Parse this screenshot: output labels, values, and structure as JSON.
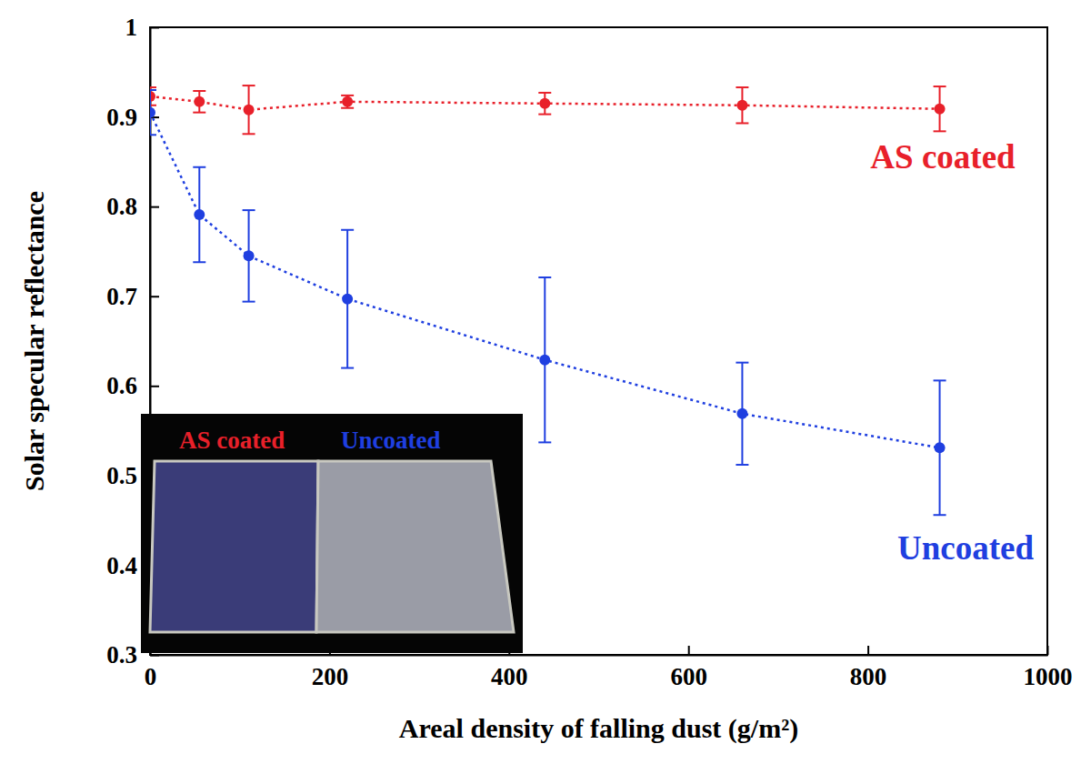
{
  "chart_data": {
    "type": "line",
    "x_label": "Areal density of falling dust (g/m²)",
    "y_label": "Solar specular reflectance",
    "x": [
      0,
      55,
      110,
      220,
      440,
      660,
      880
    ],
    "series": [
      {
        "name": "AS coated",
        "color": "#e8202a",
        "marker": "circle",
        "line_style": "dotted",
        "values": [
          0.923,
          0.917,
          0.908,
          0.917,
          0.915,
          0.913,
          0.909
        ],
        "errors": [
          0.01,
          0.012,
          0.027,
          0.007,
          0.012,
          0.02,
          0.025
        ]
      },
      {
        "name": "Uncoated",
        "color": "#1f3fe0",
        "marker": "circle",
        "line_style": "dotted",
        "values": [
          0.905,
          0.791,
          0.745,
          0.697,
          0.629,
          0.569,
          0.531
        ],
        "errors": [
          0.025,
          0.053,
          0.051,
          0.077,
          0.092,
          0.057,
          0.075
        ]
      }
    ],
    "xlim": [
      0,
      1000
    ],
    "xticks": [
      0,
      200,
      400,
      600,
      800,
      1000
    ],
    "ylim": [
      0.3,
      1
    ],
    "yticks": [
      0.3,
      0.4,
      0.5,
      0.6,
      0.7,
      0.8,
      0.9,
      1
    ],
    "grid": false,
    "annotations": [
      {
        "text": "AS coated",
        "color": "#e8202a"
      },
      {
        "text": "Uncoated",
        "color": "#1f3fe0"
      }
    ]
  }
}
